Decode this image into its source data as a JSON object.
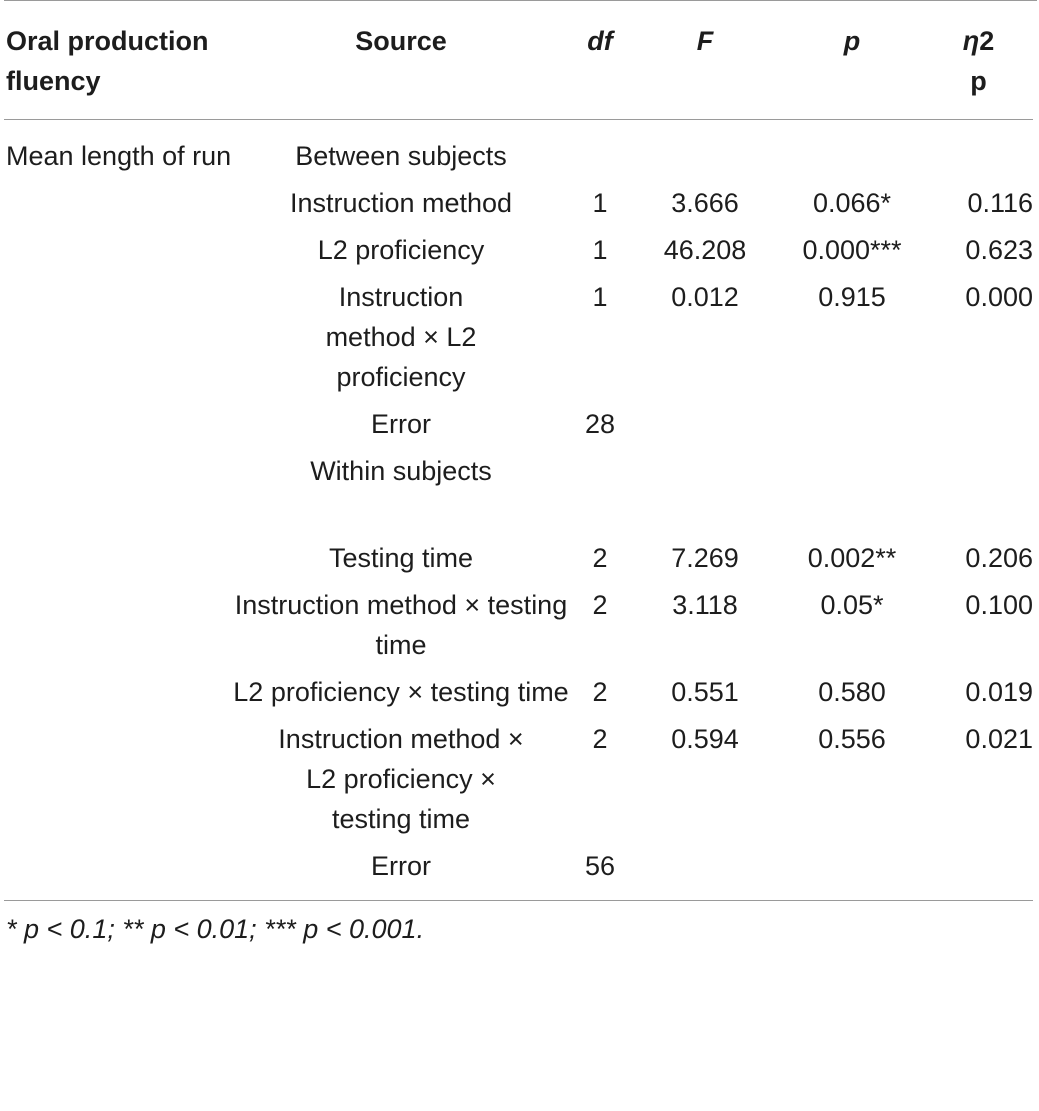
{
  "table": {
    "headers": {
      "col1": "Oral production fluency",
      "col2": "Source",
      "col3": "df",
      "col4": "F",
      "col5": "p",
      "col6_symbol": "η",
      "col6_sup": "2",
      "col6_sub": "p"
    },
    "group": {
      "measure": "Mean length of run",
      "between": "Between subjects",
      "within": "Within subjects"
    },
    "rows": [
      {
        "source": "Instruction method",
        "df": "1",
        "F": "3.666",
        "p": "0.066*",
        "eta": "0.116"
      },
      {
        "source": "L2 proficiency",
        "df": "1",
        "F": "46.208",
        "p": "0.000***",
        "eta": "0.623"
      },
      {
        "source": "Instruction method × L2 proficiency",
        "df": "1",
        "F": "0.012",
        "p": "0.915",
        "eta": "0.000"
      },
      {
        "source": "Error",
        "df": "28",
        "F": "",
        "p": "",
        "eta": ""
      },
      {
        "source": "Testing time",
        "df": "2",
        "F": "7.269",
        "p": "0.002**",
        "eta": "0.206"
      },
      {
        "source": "Instruction method × testing time",
        "df": "2",
        "F": "3.118",
        "p": "0.05*",
        "eta": "0.100"
      },
      {
        "source": "L2 proficiency × testing time",
        "df": "2",
        "F": "0.551",
        "p": "0.580",
        "eta": "0.019"
      },
      {
        "source": "Instruction method × L2 proficiency × testing time",
        "df": "2",
        "F": "0.594",
        "p": "0.556",
        "eta": "0.021"
      },
      {
        "source": "Error",
        "df": "56",
        "F": "",
        "p": "",
        "eta": ""
      }
    ],
    "footnote": "* p < 0.1; ** p < 0.01; *** p < 0.001."
  }
}
